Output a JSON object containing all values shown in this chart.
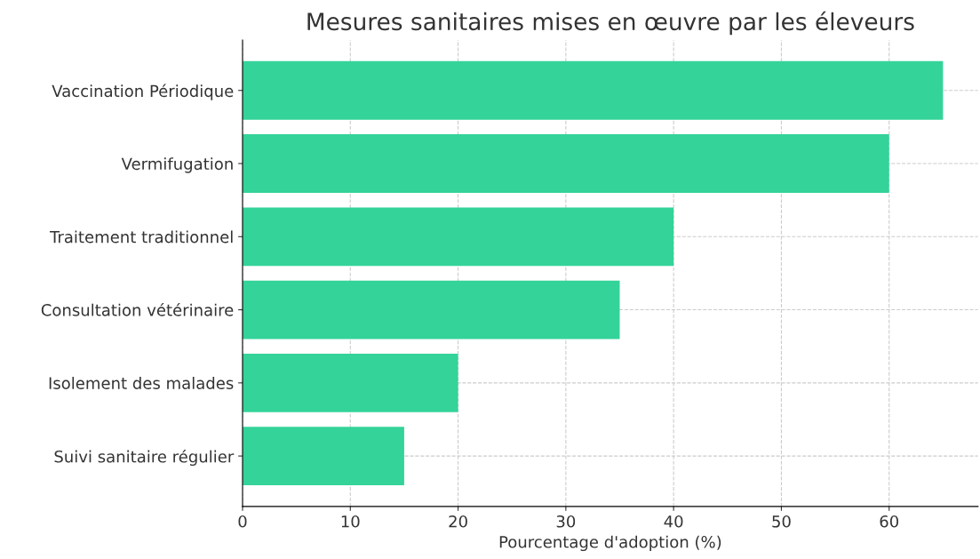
{
  "chart_data": {
    "type": "bar",
    "orientation": "horizontal",
    "title": "Mesures sanitaires mises en œuvre par les éleveurs",
    "xlabel": "Pourcentage d'adoption (%)",
    "categories": [
      "Vaccination Périodique",
      "Vermifugation",
      "Traitement traditionnel",
      "Consultation vétérinaire",
      "Isolement des malades",
      "Suivi sanitaire régulier"
    ],
    "values": [
      65,
      60,
      40,
      35,
      20,
      15
    ],
    "color": "#34d399",
    "xlim": [
      0,
      68.25
    ],
    "xticks": [
      0,
      10,
      20,
      30,
      40,
      50,
      60
    ],
    "grid": true
  }
}
